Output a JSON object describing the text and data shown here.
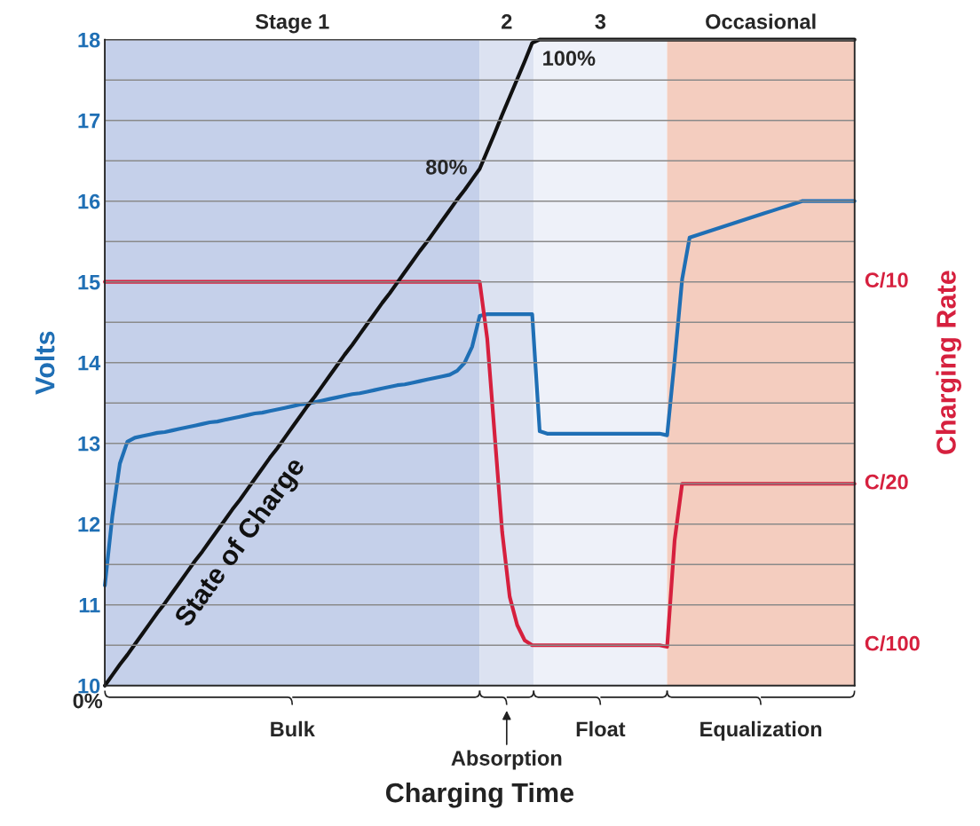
{
  "chart_data": {
    "type": "line",
    "xlabel": "Charging Time",
    "ylabel": "Volts",
    "y2label": "Charging Rate",
    "categories": [
      null,
      null,
      null,
      null,
      null,
      null,
      null,
      null,
      null,
      null,
      null,
      null,
      null,
      null,
      null,
      null,
      null,
      null,
      null,
      null,
      null,
      null,
      null,
      null,
      null,
      null,
      null,
      null,
      null,
      null,
      null,
      null,
      null,
      null,
      null,
      null,
      null,
      null,
      null,
      null,
      null,
      null,
      null,
      null,
      null,
      null,
      null,
      null,
      null,
      null,
      null,
      null,
      null,
      null,
      null,
      null,
      null,
      null,
      null,
      null,
      null,
      null,
      null,
      null,
      null,
      null,
      null,
      null,
      null,
      null,
      null,
      null,
      null,
      null,
      null,
      null,
      null,
      null,
      null,
      null,
      null,
      null,
      null,
      null,
      null,
      null,
      null,
      null,
      null,
      null,
      null,
      null,
      null,
      null,
      null,
      null,
      null,
      null,
      null,
      null,
      null
    ],
    "series": [
      {
        "color": "#1f6fb5",
        "values": [
          11.24,
          12.1,
          12.75,
          13.02,
          13.07,
          13.09,
          13.11,
          13.13,
          13.14,
          13.16,
          13.18,
          13.2,
          13.22,
          13.24,
          13.26,
          13.27,
          13.29,
          13.31,
          13.33,
          13.35,
          13.37,
          13.38,
          13.4,
          13.42,
          13.44,
          13.46,
          13.48,
          13.49,
          13.51,
          13.53,
          13.55,
          13.57,
          13.59,
          13.61,
          13.62,
          13.64,
          13.66,
          13.68,
          13.7,
          13.72,
          13.73,
          13.75,
          13.77,
          13.79,
          13.81,
          13.83,
          13.85,
          13.9,
          14.0,
          14.2,
          14.58,
          14.6,
          14.6,
          14.6,
          14.6,
          14.6,
          14.6,
          14.6,
          13.15,
          13.12,
          13.12,
          13.12,
          13.12,
          13.12,
          13.12,
          13.12,
          13.12,
          13.12,
          13.12,
          13.12,
          13.12,
          13.12,
          13.12,
          13.12,
          13.12,
          13.1,
          14.03,
          15.03,
          15.55,
          15.58,
          15.61,
          15.64,
          15.67,
          15.7,
          15.73,
          15.76,
          15.79,
          15.82,
          15.85,
          15.88,
          15.91,
          15.94,
          15.97,
          16.0,
          16.0,
          16.0,
          16.0,
          16.0,
          16.0,
          16.0,
          16.0
        ]
      },
      {
        "color": "#d6203e",
        "values": [
          15.0,
          15.0,
          15.0,
          15.0,
          15.0,
          15.0,
          15.0,
          15.0,
          15.0,
          15.0,
          15.0,
          15.0,
          15.0,
          15.0,
          15.0,
          15.0,
          15.0,
          15.0,
          15.0,
          15.0,
          15.0,
          15.0,
          15.0,
          15.0,
          15.0,
          15.0,
          15.0,
          15.0,
          15.0,
          15.0,
          15.0,
          15.0,
          15.0,
          15.0,
          15.0,
          15.0,
          15.0,
          15.0,
          15.0,
          15.0,
          15.0,
          15.0,
          15.0,
          15.0,
          15.0,
          15.0,
          15.0,
          15.0,
          15.0,
          15.0,
          15.0,
          14.3,
          13.1,
          11.9,
          11.1,
          10.75,
          10.56,
          10.5,
          10.5,
          10.5,
          10.5,
          10.5,
          10.5,
          10.5,
          10.5,
          10.5,
          10.5,
          10.5,
          10.5,
          10.5,
          10.5,
          10.5,
          10.5,
          10.5,
          10.5,
          10.48,
          11.8,
          12.5,
          12.5,
          12.5,
          12.5,
          12.5,
          12.5,
          12.5,
          12.5,
          12.5,
          12.5,
          12.5,
          12.5,
          12.5,
          12.5,
          12.5,
          12.5,
          12.5,
          12.5,
          12.5,
          12.5,
          12.5,
          12.5,
          12.5,
          12.5
        ]
      },
      {
        "name": "State of Charge",
        "color": "#111111",
        "values": [
          10.0,
          10.13,
          10.26,
          10.38,
          10.51,
          10.64,
          10.77,
          10.9,
          11.02,
          11.15,
          11.28,
          11.41,
          11.54,
          11.66,
          11.79,
          11.92,
          12.05,
          12.18,
          12.3,
          12.43,
          12.56,
          12.69,
          12.82,
          12.94,
          13.07,
          13.2,
          13.33,
          13.46,
          13.58,
          13.71,
          13.84,
          13.97,
          14.1,
          14.22,
          14.35,
          14.48,
          14.61,
          14.74,
          14.86,
          14.99,
          15.12,
          15.25,
          15.38,
          15.5,
          15.63,
          15.76,
          15.89,
          16.02,
          16.14,
          16.27,
          16.4,
          16.62,
          16.84,
          17.07,
          17.29,
          17.51,
          17.73,
          17.96,
          18.0,
          18.0,
          18.0,
          18.0,
          18.0,
          18.0,
          18.0,
          18.0,
          18.0,
          18.0,
          18.0,
          18.0,
          18.0,
          18.0,
          18.0,
          18.0,
          18.0,
          18.0,
          18.0,
          18.0,
          18.0,
          18.0,
          18.0,
          18.0,
          18.0,
          18.0,
          18.0,
          18.0,
          18.0,
          18.0,
          18.0,
          18.0,
          18.0,
          18.0,
          18.0,
          18.0,
          18.0,
          18.0,
          18.0,
          18.0,
          18.0,
          18.0,
          18.0
        ]
      }
    ],
    "ylim": [
      10,
      18
    ],
    "yticks": [
      10,
      {
        "value": 10.5,
        "label": null
      },
      11,
      {
        "value": 11.5,
        "label": null
      },
      12,
      {
        "value": 12.5,
        "label": null
      },
      13,
      {
        "value": 13.5,
        "label": null
      },
      14,
      {
        "value": 14.5,
        "label": null
      },
      15,
      {
        "value": 15.5,
        "label": null
      },
      16,
      {
        "value": 16.5,
        "label": null
      },
      17,
      {
        "value": 17.5,
        "label": null
      },
      18
    ],
    "annotations": [
      "Stage 1",
      "2",
      "3",
      "Occasional",
      "Bulk",
      "Absorption",
      "Float",
      "Equalization",
      "0%",
      "80%",
      "100%",
      "C/10",
      "C/20",
      "C/100"
    ],
    "grid": "y"
  }
}
